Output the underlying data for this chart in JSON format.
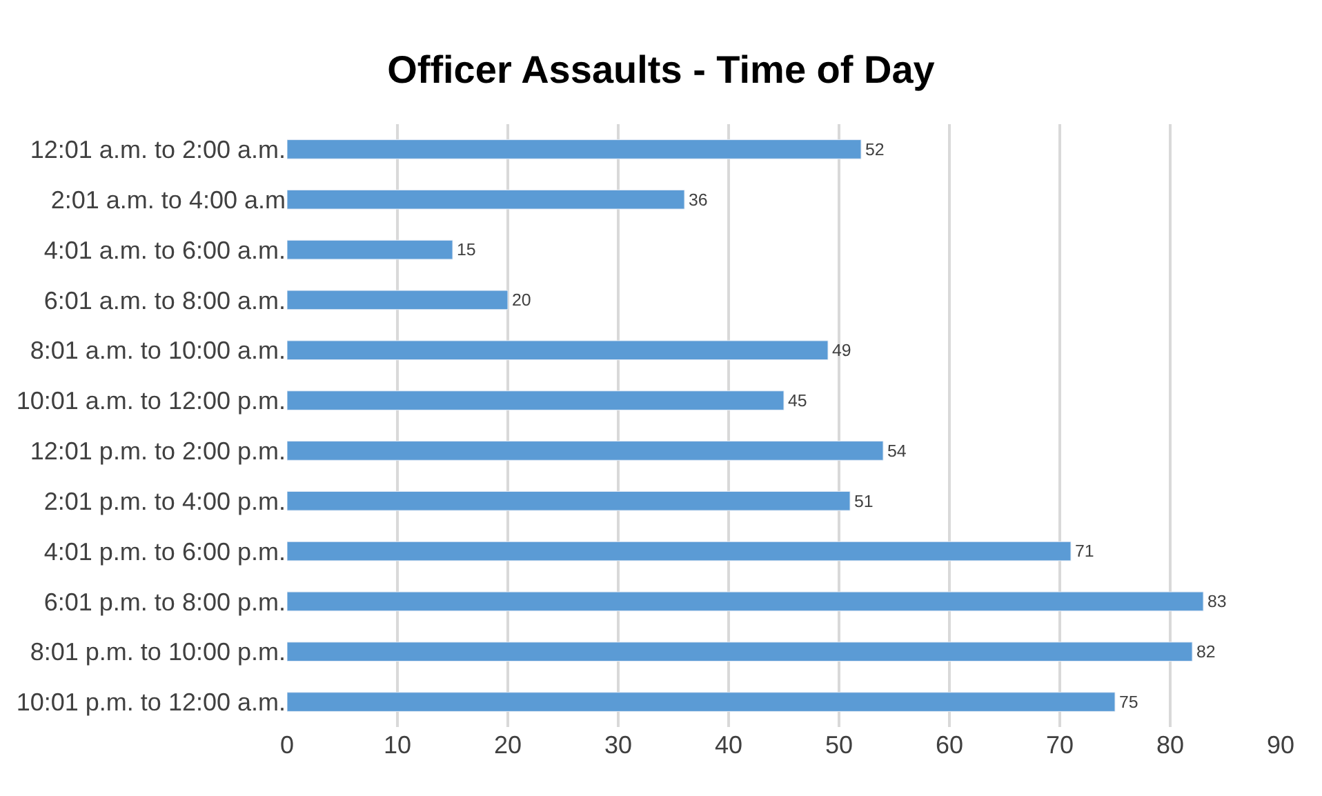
{
  "chart_data": {
    "type": "bar",
    "orientation": "horizontal",
    "title": "Officer Assaults - Time of Day",
    "categories": [
      "12:01 a.m. to 2:00 a.m.",
      "2:01 a.m. to 4:00 a.m",
      "4:01 a.m. to 6:00 a.m.",
      "6:01 a.m. to 8:00 a.m.",
      "8:01 a.m. to 10:00 a.m.",
      "10:01 a.m. to 12:00 p.m.",
      "12:01 p.m. to 2:00 p.m.",
      "2:01 p.m. to 4:00 p.m.",
      "4:01 p.m. to 6:00 p.m.",
      "6:01 p.m. to 8:00 p.m.",
      "8:01 p.m. to 10:00 p.m.",
      "10:01 p.m. to 12:00 a.m."
    ],
    "values": [
      52,
      36,
      15,
      20,
      49,
      45,
      54,
      51,
      71,
      83,
      82,
      75
    ],
    "color": "#5b9bd5",
    "xlim": [
      0,
      90
    ],
    "xticks": [
      0,
      10,
      20,
      30,
      40,
      50,
      60,
      70,
      80,
      90
    ],
    "grid": "x",
    "data_labels": true
  }
}
